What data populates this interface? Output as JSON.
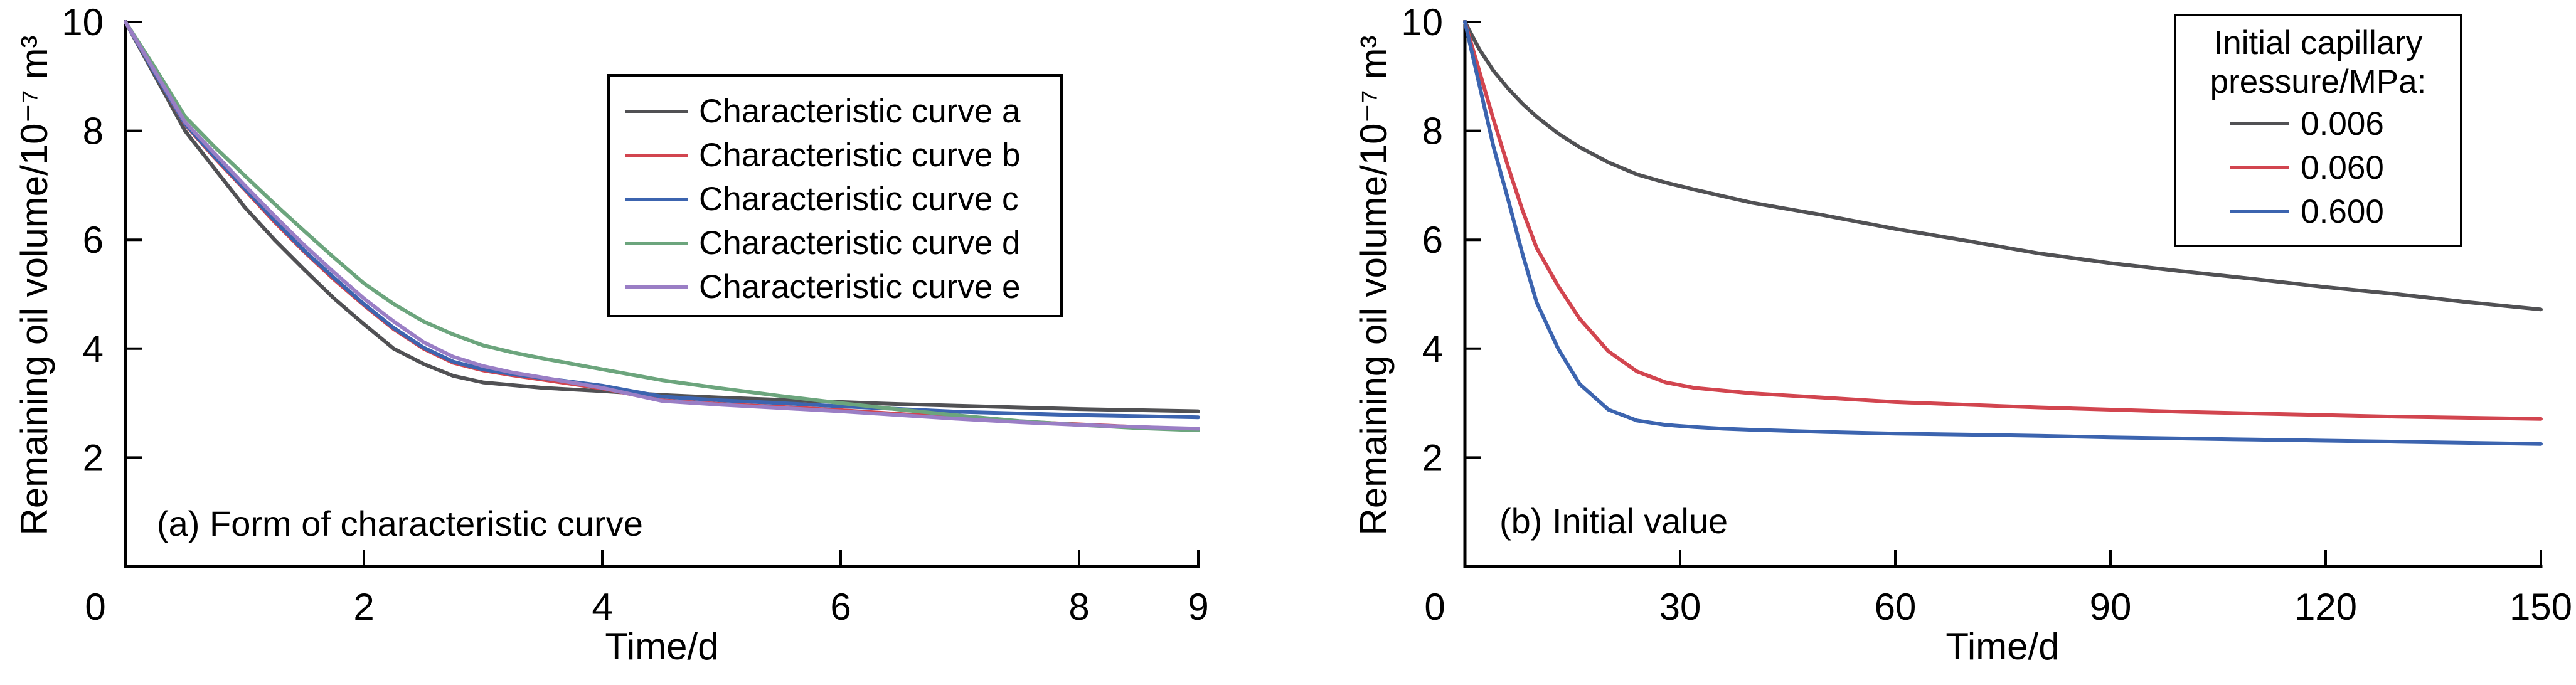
{
  "figure": {
    "background": "#ffffff",
    "description": "Two-panel line figure of remaining oil volume versus time"
  },
  "chart_data": [
    {
      "type": "line",
      "panel": "a",
      "caption": "(a) Form of characteristic curve",
      "xlabel": "Time/d",
      "ylabel": "Remaining oil volume/10⁻⁷ m³",
      "xlim": [
        0,
        9
      ],
      "ylim": [
        0,
        10
      ],
      "x_ticks": [
        0,
        2,
        4,
        6,
        8,
        9
      ],
      "y_ticks": [
        10,
        8,
        6,
        4,
        2
      ],
      "grid": false,
      "legend_position": "upper right",
      "legend": {
        "entries": [
          {
            "label": "Characteristic curve a",
            "color": "#515154"
          },
          {
            "label": "Characteristic curve b",
            "color": "#d2454f"
          },
          {
            "label": "Characteristic curve c",
            "color": "#3c64af"
          },
          {
            "label": "Characteristic curve d",
            "color": "#6ca57d"
          },
          {
            "label": "Characteristic curve e",
            "color": "#9a7ec5"
          }
        ]
      },
      "x": [
        0,
        0.25,
        0.5,
        0.75,
        1,
        1.25,
        1.5,
        1.75,
        2,
        2.25,
        2.5,
        2.75,
        3,
        3.25,
        3.5,
        4,
        4.5,
        5,
        5.5,
        6,
        6.5,
        7,
        7.5,
        8,
        8.5,
        9
      ],
      "series": [
        {
          "name": "Characteristic curve a",
          "color": "#515154",
          "values": [
            10,
            9.0,
            8.0,
            7.3,
            6.6,
            6.0,
            5.45,
            4.92,
            4.45,
            4.0,
            3.72,
            3.5,
            3.38,
            3.33,
            3.28,
            3.22,
            3.15,
            3.1,
            3.06,
            3.02,
            2.98,
            2.95,
            2.92,
            2.89,
            2.87,
            2.85
          ]
        },
        {
          "name": "Characteristic curve b",
          "color": "#d2454f",
          "values": [
            10,
            9.05,
            8.12,
            7.5,
            6.92,
            6.33,
            5.78,
            5.27,
            4.8,
            4.36,
            4.0,
            3.74,
            3.6,
            3.51,
            3.43,
            3.27,
            3.05,
            2.98,
            2.93,
            2.87,
            2.8,
            2.73,
            2.66,
            2.61,
            2.56,
            2.52
          ]
        },
        {
          "name": "Characteristic curve c",
          "color": "#3c64af",
          "values": [
            10,
            9.05,
            8.13,
            7.52,
            6.94,
            6.36,
            5.8,
            5.3,
            4.82,
            4.38,
            4.02,
            3.76,
            3.62,
            3.53,
            3.46,
            3.32,
            3.12,
            3.05,
            3.0,
            2.94,
            2.89,
            2.84,
            2.81,
            2.78,
            2.76,
            2.74
          ]
        },
        {
          "name": "Characteristic curve d",
          "color": "#6ca57d",
          "values": [
            10,
            9.15,
            8.26,
            7.7,
            7.18,
            6.66,
            6.16,
            5.67,
            5.2,
            4.82,
            4.5,
            4.26,
            4.06,
            3.93,
            3.82,
            3.62,
            3.42,
            3.27,
            3.13,
            3.0,
            2.88,
            2.77,
            2.67,
            2.6,
            2.54,
            2.5
          ]
        },
        {
          "name": "Characteristic curve e",
          "color": "#9a7ec5",
          "values": [
            10,
            9.08,
            8.16,
            7.58,
            7.0,
            6.44,
            5.9,
            5.4,
            4.92,
            4.5,
            4.12,
            3.85,
            3.68,
            3.56,
            3.47,
            3.28,
            3.04,
            2.97,
            2.91,
            2.85,
            2.78,
            2.71,
            2.65,
            2.6,
            2.56,
            2.53
          ]
        }
      ]
    },
    {
      "type": "line",
      "panel": "b",
      "caption": "(b) Initial value",
      "xlabel": "Time/d",
      "ylabel": "Remaining oil volume/10⁻⁷ m³",
      "xlim": [
        0,
        150
      ],
      "ylim": [
        0,
        10
      ],
      "x_ticks": [
        0,
        30,
        60,
        90,
        120,
        150
      ],
      "y_ticks": [
        10,
        8,
        6,
        4,
        2
      ],
      "grid": false,
      "legend_position": "upper right",
      "legend": {
        "title_lines": [
          "Initial capillary",
          "pressure/MPa:"
        ],
        "entries": [
          {
            "label": "0.006",
            "color": "#515154"
          },
          {
            "label": "0.060",
            "color": "#d2454f"
          },
          {
            "label": "0.600",
            "color": "#3c64af"
          }
        ]
      },
      "x": [
        0,
        2,
        4,
        6,
        8,
        10,
        13,
        16,
        20,
        24,
        28,
        32,
        36,
        40,
        50,
        60,
        70,
        80,
        90,
        100,
        110,
        120,
        130,
        140,
        150
      ],
      "series": [
        {
          "name": "0.006",
          "color": "#515154",
          "values": [
            10,
            9.5,
            9.1,
            8.78,
            8.5,
            8.26,
            7.95,
            7.7,
            7.42,
            7.2,
            7.05,
            6.92,
            6.8,
            6.68,
            6.45,
            6.2,
            5.98,
            5.75,
            5.57,
            5.42,
            5.28,
            5.13,
            5.0,
            4.85,
            4.72
          ]
        },
        {
          "name": "0.060",
          "color": "#d2454f",
          "values": [
            10,
            9.1,
            8.2,
            7.35,
            6.55,
            5.85,
            5.15,
            4.55,
            3.95,
            3.58,
            3.38,
            3.28,
            3.23,
            3.18,
            3.1,
            3.02,
            2.97,
            2.92,
            2.88,
            2.84,
            2.81,
            2.78,
            2.75,
            2.73,
            2.71
          ]
        },
        {
          "name": "0.600",
          "color": "#3c64af",
          "values": [
            10,
            8.85,
            7.7,
            6.75,
            5.75,
            4.85,
            4.0,
            3.35,
            2.88,
            2.68,
            2.6,
            2.56,
            2.53,
            2.51,
            2.47,
            2.44,
            2.42,
            2.4,
            2.37,
            2.35,
            2.33,
            2.31,
            2.29,
            2.27,
            2.25
          ]
        }
      ]
    }
  ]
}
